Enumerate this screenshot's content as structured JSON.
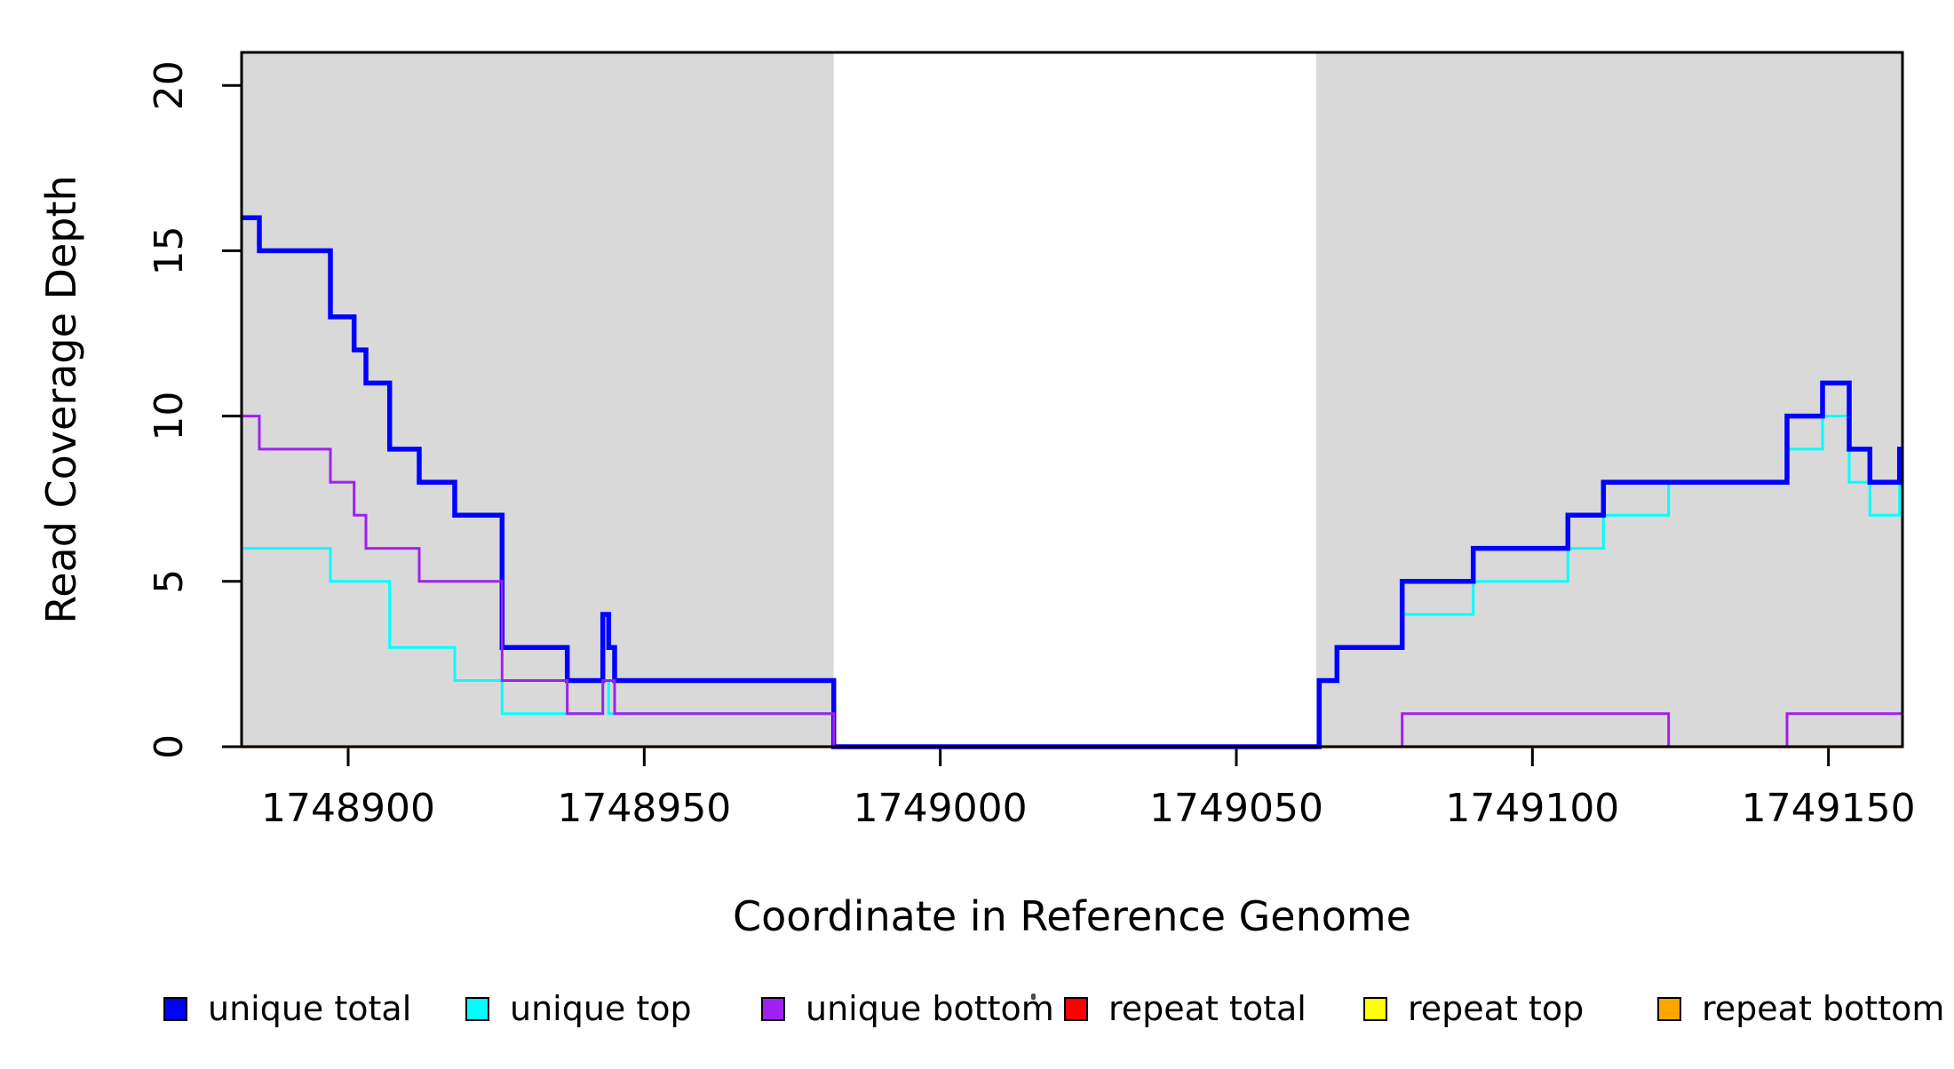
{
  "figure": {
    "ylabel": "Read Coverage Depth",
    "xlabel": "Coordinate in Reference Genome"
  },
  "chart_data": {
    "type": "line",
    "subtype": "step-coverage",
    "title": "",
    "xlabel": "Coordinate in Reference Genome",
    "ylabel": "Read Coverage Depth",
    "xlim": [
      1748882,
      1749162.5
    ],
    "ylim": [
      0,
      21
    ],
    "xticks": [
      1748900,
      1748950,
      1749000,
      1749050,
      1749100,
      1749150
    ],
    "yticks": [
      0,
      5,
      10,
      15,
      20
    ],
    "grid": false,
    "legend_position": "bottom",
    "background_color": "#ffffff",
    "shaded_region_color": "#d9d9d9",
    "shaded_regions": [
      {
        "name": "left-unique-region",
        "x0": 1748882,
        "x1": 1748982
      },
      {
        "name": "right-unique-region",
        "x0": 1749063.5,
        "x1": 1749162.5
      }
    ],
    "series": [
      {
        "name": "repeat total",
        "color": "#FF0000",
        "line_width": 3,
        "steps": [
          [
            1748882,
            0
          ]
        ]
      },
      {
        "name": "repeat top",
        "color": "#FFFF00",
        "line_width": 3,
        "steps": [
          [
            1748882,
            0
          ]
        ]
      },
      {
        "name": "repeat bottom",
        "color": "#FFA500",
        "line_width": 3.5,
        "steps": [
          [
            1748882,
            0
          ]
        ]
      },
      {
        "name": "unique top",
        "color": "#00FFFF",
        "line_width": 3,
        "steps": [
          [
            1748882,
            6
          ],
          [
            1748897,
            5
          ],
          [
            1748907,
            3
          ],
          [
            1748918,
            2
          ],
          [
            1748926,
            1
          ],
          [
            1748943,
            2
          ],
          [
            1748944,
            1
          ],
          [
            1748982,
            0
          ],
          [
            1749064,
            2
          ],
          [
            1749067,
            3
          ],
          [
            1749078,
            4
          ],
          [
            1749090,
            5
          ],
          [
            1749106,
            6
          ],
          [
            1749112,
            7
          ],
          [
            1749123,
            8
          ],
          [
            1749143,
            9
          ],
          [
            1749149,
            10
          ],
          [
            1749153.5,
            8
          ],
          [
            1749157,
            7
          ],
          [
            1749162,
            8
          ]
        ]
      },
      {
        "name": "unique total",
        "color": "#0000FF",
        "line_width": 5.5,
        "steps": [
          [
            1748882,
            16
          ],
          [
            1748885,
            15
          ],
          [
            1748897,
            13
          ],
          [
            1748901,
            12
          ],
          [
            1748903,
            11
          ],
          [
            1748907,
            9
          ],
          [
            1748912,
            8
          ],
          [
            1748918,
            7
          ],
          [
            1748926,
            3
          ],
          [
            1748937,
            2
          ],
          [
            1748943,
            4
          ],
          [
            1748944,
            3
          ],
          [
            1748945,
            2
          ],
          [
            1748982,
            0
          ],
          [
            1749064,
            2
          ],
          [
            1749067,
            3
          ],
          [
            1749078,
            5
          ],
          [
            1749090,
            6
          ],
          [
            1749106,
            7
          ],
          [
            1749112,
            8
          ],
          [
            1749143,
            10
          ],
          [
            1749149,
            11
          ],
          [
            1749153.5,
            9
          ],
          [
            1749157,
            8
          ],
          [
            1749162,
            9
          ]
        ]
      },
      {
        "name": "unique bottom",
        "color": "#A020F0",
        "line_width": 3,
        "steps": [
          [
            1748882,
            10
          ],
          [
            1748885,
            9
          ],
          [
            1748897,
            8
          ],
          [
            1748901,
            7
          ],
          [
            1748903,
            6
          ],
          [
            1748912,
            5
          ],
          [
            1748926,
            2
          ],
          [
            1748937,
            1
          ],
          [
            1748943,
            2
          ],
          [
            1748945,
            1
          ],
          [
            1748982,
            0
          ],
          [
            1749078,
            1
          ],
          [
            1749123,
            0
          ],
          [
            1749143,
            1
          ]
        ]
      }
    ],
    "legend": [
      {
        "label": "unique total",
        "color": "#0000FF"
      },
      {
        "label": "unique top",
        "color": "#00FFFF"
      },
      {
        "label": "unique bottom",
        "color": "#A020F0"
      },
      {
        "label": "repeat total",
        "color": "#FF0000"
      },
      {
        "label": "repeat top",
        "color": "#FFFF00"
      },
      {
        "label": "repeat bottom",
        "color": "#FFA500"
      }
    ]
  }
}
